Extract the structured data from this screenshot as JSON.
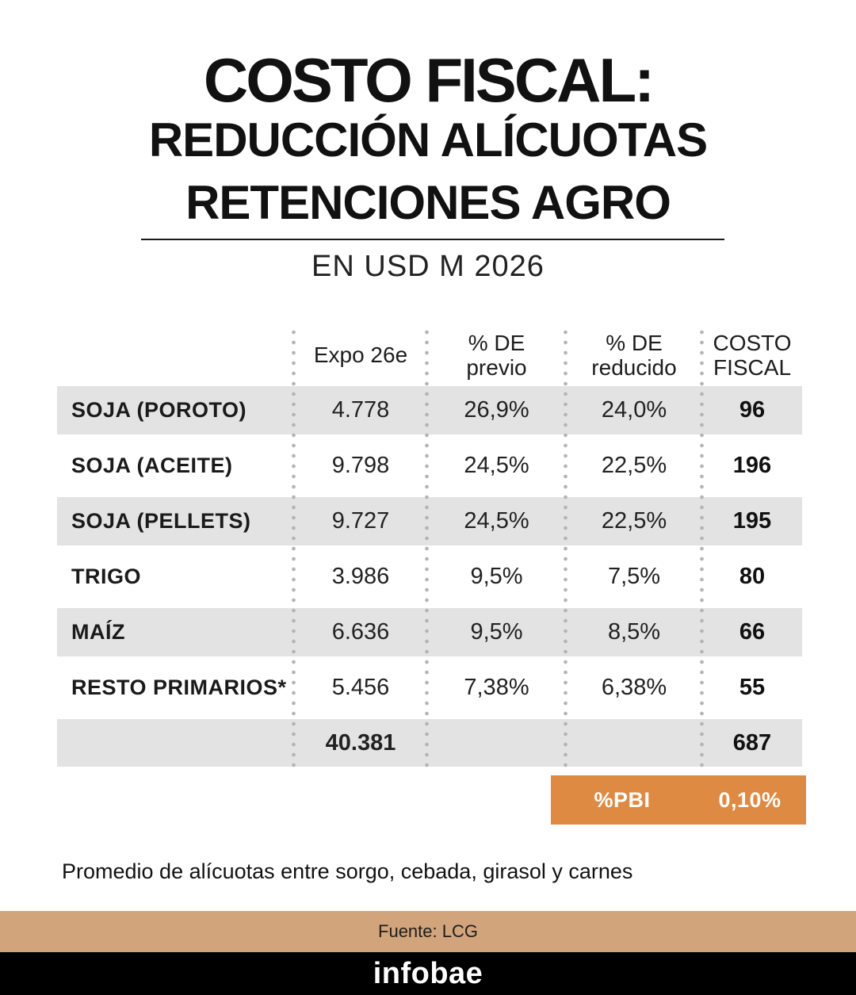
{
  "title": {
    "line1": "COSTO FISCAL:",
    "line2": "REDUCCIÓN ALÍCUOTAS",
    "line3": "RETENCIONES AGRO",
    "subtitle": "EN USD M 2026"
  },
  "table": {
    "headers": [
      "Expo 26e",
      "% DE\nprevio",
      "% DE\nreducido",
      "COSTO\nFISCAL"
    ]
  },
  "chart_data": {
    "type": "table",
    "title": "COSTO FISCAL: REDUCCIÓN ALÍCUOTAS RETENCIONES AGRO",
    "subtitle": "EN USD M 2026",
    "columns": [
      "",
      "Expo 26e",
      "% DE previo",
      "% DE reducido",
      "COSTO FISCAL"
    ],
    "rows": [
      [
        "SOJA (POROTO)",
        "4.778",
        "26,9%",
        "24,0%",
        "96"
      ],
      [
        "SOJA (ACEITE)",
        "9.798",
        "24,5%",
        "22,5%",
        "196"
      ],
      [
        "SOJA (PELLETS)",
        "9.727",
        "24,5%",
        "22,5%",
        "195"
      ],
      [
        "TRIGO",
        "3.986",
        "9,5%",
        "7,5%",
        "80"
      ],
      [
        "MAÍZ",
        "6.636",
        "9,5%",
        "8,5%",
        "66"
      ],
      [
        "RESTO PRIMARIOS*",
        "5.456",
        "7,38%",
        "6,38%",
        "55"
      ]
    ],
    "total_row": {
      "expo": "40.381",
      "costo": "687"
    },
    "pbi_row": {
      "label": "%PBI",
      "value": "0,10%"
    }
  },
  "footnote": "Promedio de alícuotas entre sorgo, cebada, girasol y carnes",
  "footer": {
    "source": "Fuente: LCG",
    "brand": "infobae"
  },
  "colors": {
    "accent_orange": "#de8a42",
    "source_bar_tan": "#d2a47c",
    "row_stripe_gray": "#e3e3e3",
    "brand_bar_black": "#000000"
  }
}
